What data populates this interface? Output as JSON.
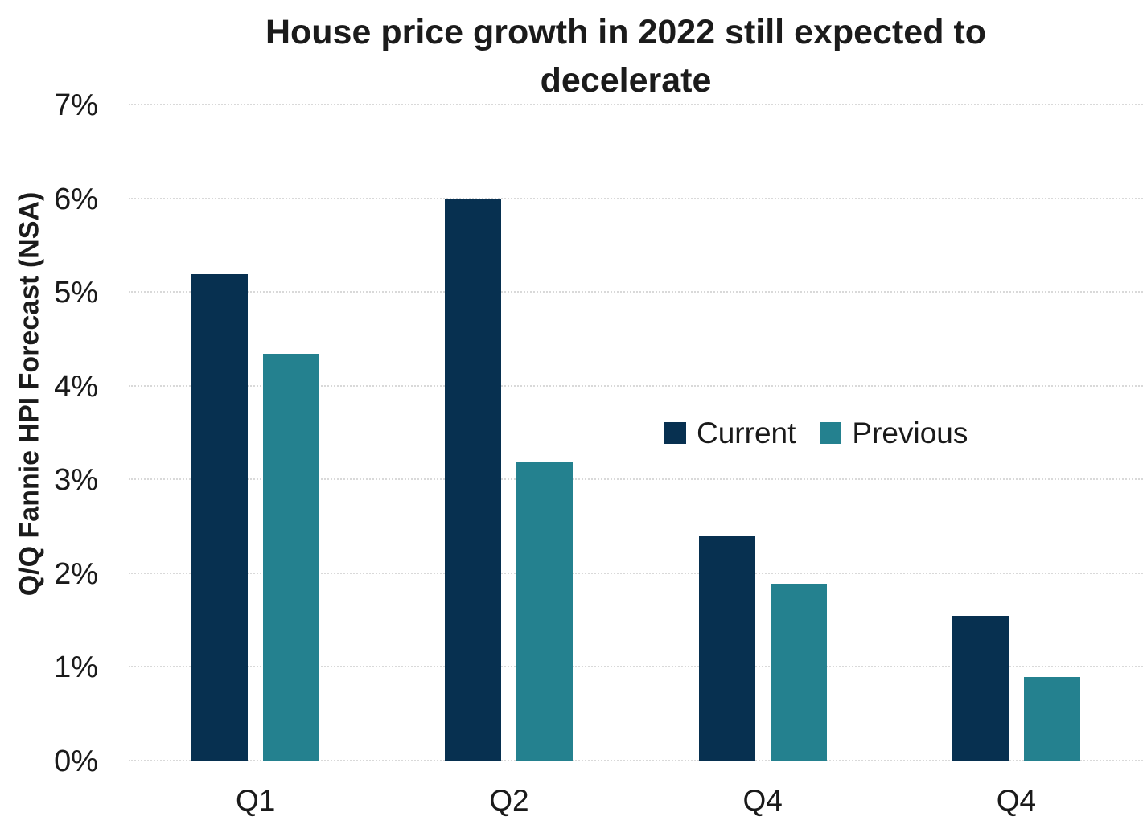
{
  "title": "House price growth in 2022 still expected to decelerate",
  "y_axis_label": "Q/Q Fannie HPI Forecast (NSA)",
  "legend": {
    "items": [
      {
        "label": "Current",
        "color": "#073050"
      },
      {
        "label": "Previous",
        "color": "#24818F"
      }
    ]
  },
  "colors": {
    "current": "#073050",
    "previous": "#24818F",
    "gridline": "#d9d9d9",
    "text": "#1a1a1a",
    "background": "#ffffff"
  },
  "chart_data": {
    "type": "bar",
    "title": "House price growth in 2022 still expected to decelerate",
    "categories": [
      "Q1",
      "Q2",
      "Q4",
      "Q4"
    ],
    "series": [
      {
        "name": "Current",
        "color": "#073050",
        "values": [
          5.2,
          6.0,
          2.4,
          1.55
        ]
      },
      {
        "name": "Previous",
        "color": "#24818F",
        "values": [
          4.35,
          3.2,
          1.9,
          0.9
        ]
      }
    ],
    "xlabel": "",
    "ylabel": "Q/Q Fannie HPI Forecast (NSA)",
    "ylim": [
      0,
      7
    ],
    "yticks": [
      "0%",
      "1%",
      "2%",
      "3%",
      "4%",
      "5%",
      "6%",
      "7%"
    ],
    "grid": true,
    "legend_position": "inside-right"
  }
}
